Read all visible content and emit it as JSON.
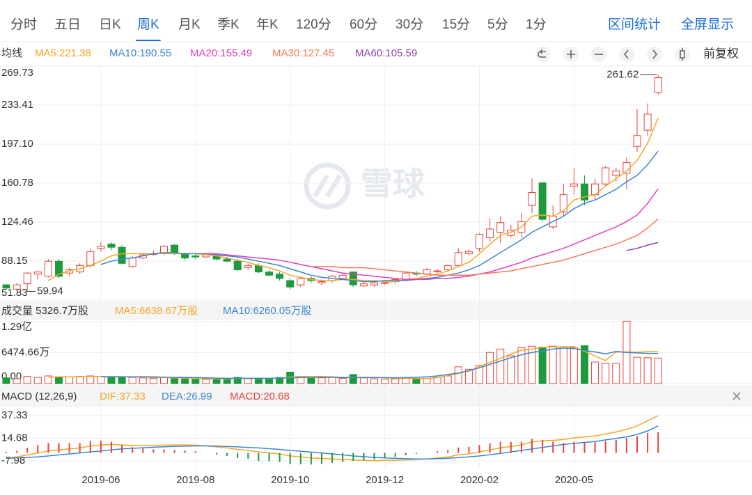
{
  "toolbar": {
    "tabs": [
      {
        "label": "分时"
      },
      {
        "label": "五日"
      },
      {
        "label": "日K"
      },
      {
        "label": "周K",
        "active": true
      },
      {
        "label": "月K"
      },
      {
        "label": "季K"
      },
      {
        "label": "年K"
      },
      {
        "label": "120分"
      },
      {
        "label": "60分"
      },
      {
        "label": "30分"
      },
      {
        "label": "15分"
      },
      {
        "label": "5分"
      },
      {
        "label": "1分"
      }
    ],
    "actions": [
      "区间统计",
      "全屏显示"
    ],
    "price_adjust": "前复权"
  },
  "watermark": "雪球",
  "chart_data": [
    {
      "type": "candlestick",
      "legend_title": "均线",
      "up_color": "#e8413b",
      "down_color": "#1c9a3c",
      "up_hollow": true,
      "grid": true,
      "ylim": [
        51.83,
        269.73
      ],
      "yticks": [
        51.83,
        88.15,
        124.46,
        160.78,
        {
          "value": 197.1,
          "label": "197.10"
        },
        233.41,
        269.73
      ],
      "categories": [
        null,
        null,
        null,
        null,
        null,
        null,
        null,
        null,
        null,
        "2019-06",
        null,
        null,
        null,
        null,
        null,
        null,
        null,
        null,
        "2019-08",
        null,
        null,
        null,
        null,
        null,
        null,
        null,
        null,
        "2019-10",
        null,
        null,
        null,
        null,
        null,
        null,
        null,
        null,
        "2019-12",
        null,
        null,
        null,
        null,
        null,
        null,
        null,
        null,
        "2020-02",
        null,
        null,
        null,
        null,
        null,
        null,
        null,
        null,
        "2020-05",
        null,
        null,
        null,
        null,
        null,
        null,
        null,
        null
      ],
      "open": [
        66,
        62,
        67,
        76,
        74,
        88,
        77,
        78,
        84,
        100,
        104,
        101,
        83,
        91,
        95,
        95,
        103,
        95,
        93,
        92,
        93,
        90,
        88,
        82,
        84,
        78,
        76,
        70,
        66,
        72,
        68,
        70,
        72,
        78,
        65,
        66,
        68,
        69,
        71,
        77,
        76,
        79,
        80,
        84,
        95,
        100,
        110,
        115,
        112,
        115,
        140,
        161,
        120,
        134,
        158,
        160,
        150,
        160,
        168,
        170,
        195,
        210,
        245
      ],
      "close": [
        63,
        66,
        77,
        78,
        88,
        74,
        80,
        84,
        97,
        102,
        101,
        86,
        91,
        94,
        95,
        102,
        96,
        91,
        92,
        94,
        90,
        88,
        80,
        84,
        78,
        75,
        72,
        64,
        72,
        70,
        69,
        74,
        75,
        66,
        67,
        68,
        68,
        71,
        77,
        76,
        80,
        79,
        84,
        96,
        97,
        113,
        118,
        124,
        117,
        125,
        152,
        127,
        130,
        150,
        160,
        145,
        160,
        175,
        172,
        180,
        205,
        225,
        259
      ],
      "low": [
        61,
        61,
        59.94,
        71,
        73,
        72,
        74,
        76,
        82,
        97,
        98,
        85,
        82,
        90,
        93,
        94,
        94,
        89,
        90,
        91,
        89,
        87,
        79,
        80,
        77,
        74,
        70,
        62,
        64,
        68,
        66,
        68,
        71,
        64,
        64,
        64,
        66,
        67,
        70,
        74,
        75,
        77,
        78,
        84,
        93,
        97,
        106,
        105,
        110,
        110,
        133,
        125,
        118,
        130,
        150,
        140,
        145,
        158,
        162,
        155,
        190,
        205,
        243
      ],
      "high": [
        67,
        68,
        78,
        79,
        90,
        90,
        82,
        86,
        100,
        106,
        106,
        103,
        93,
        95,
        98,
        103,
        104,
        96,
        95,
        96,
        95,
        92,
        90,
        86,
        86,
        80,
        78,
        72,
        73,
        74,
        71,
        75,
        76,
        78,
        69,
        70,
        70,
        72,
        78,
        79,
        82,
        81,
        85,
        100,
        99,
        114,
        128,
        130,
        122,
        133,
        165,
        162,
        140,
        160,
        175,
        168,
        165,
        177,
        175,
        185,
        230,
        235,
        261.62
      ],
      "annotations": [
        261.62,
        59.94
      ],
      "series": [
        {
          "label": "MA5:221.38",
          "color": "#f5a623",
          "values": [
            null,
            null,
            null,
            null,
            70,
            76,
            79,
            81,
            84,
            88,
            93,
            95,
            95,
            95,
            95,
            95,
            95,
            95,
            95,
            94,
            93,
            91,
            89,
            87,
            84,
            82,
            79,
            75,
            73,
            71,
            70,
            70,
            71,
            71,
            70,
            70,
            69,
            69,
            71,
            72,
            74,
            76,
            79,
            83,
            87,
            95,
            104,
            112,
            115,
            120,
            130,
            131,
            130,
            135,
            145,
            148,
            150,
            158,
            165,
            172,
            182,
            198,
            221.38
          ]
        },
        {
          "label": "MA10:190.55",
          "color": "#3a86d4",
          "values": [
            null,
            null,
            null,
            null,
            null,
            null,
            null,
            null,
            null,
            85,
            88,
            90,
            91,
            93,
            95,
            96,
            96,
            95,
            95,
            95,
            94,
            93,
            92,
            90,
            88,
            86,
            84,
            81,
            78,
            75,
            73,
            72,
            71,
            70,
            69,
            69,
            70,
            70,
            70,
            71,
            72,
            73,
            75,
            77,
            80,
            84,
            90,
            96,
            102,
            108,
            115,
            120,
            125,
            130,
            137,
            142,
            145,
            150,
            155,
            162,
            168,
            178,
            190.55
          ]
        },
        {
          "label": "MA20:155.49",
          "color": "#e33fbf",
          "values": [
            null,
            null,
            null,
            null,
            null,
            null,
            null,
            null,
            null,
            null,
            null,
            null,
            null,
            null,
            null,
            null,
            null,
            null,
            null,
            95,
            95,
            94,
            93,
            92,
            91,
            90,
            89,
            87,
            85,
            83,
            81,
            79,
            77,
            76,
            75,
            74,
            73,
            72,
            71,
            71,
            71,
            72,
            72,
            73,
            74,
            76,
            78,
            81,
            84,
            87,
            91,
            94,
            97,
            100,
            104,
            108,
            112,
            116,
            120,
            125,
            131,
            142,
            155.49
          ]
        },
        {
          "label": "MA30:127.45",
          "color": "#f87a58",
          "values": [
            null,
            null,
            null,
            null,
            null,
            null,
            null,
            null,
            null,
            null,
            null,
            null,
            null,
            null,
            null,
            null,
            null,
            null,
            null,
            null,
            null,
            null,
            null,
            null,
            null,
            null,
            null,
            null,
            null,
            83,
            83,
            83,
            82,
            82,
            82,
            81,
            80,
            79,
            78,
            77,
            76,
            75,
            75,
            75,
            75,
            76,
            77,
            78,
            79,
            81,
            83,
            85,
            87,
            89,
            92,
            95,
            98,
            101,
            104,
            108,
            112,
            119,
            127.45
          ]
        },
        {
          "label": "MA60:105.59",
          "color": "#8b45b0",
          "values": [
            null,
            null,
            null,
            null,
            null,
            null,
            null,
            null,
            null,
            null,
            null,
            null,
            null,
            null,
            null,
            null,
            null,
            null,
            null,
            null,
            null,
            null,
            null,
            null,
            null,
            null,
            null,
            null,
            null,
            null,
            null,
            null,
            null,
            null,
            null,
            null,
            null,
            null,
            null,
            null,
            null,
            null,
            null,
            null,
            null,
            null,
            null,
            null,
            null,
            null,
            null,
            null,
            null,
            null,
            null,
            null,
            null,
            null,
            null,
            98,
            100,
            103,
            105.59
          ]
        }
      ]
    },
    {
      "type": "bar",
      "ylim": [
        0,
        13200
      ],
      "yticks": [
        {
          "value": 0,
          "label": "0.00"
        },
        {
          "value": 6474.66,
          "label": "6474.66万"
        },
        {
          "value": 12949.32,
          "label": "1.29亿"
        }
      ],
      "series": [
        {
          "label": "成交量 5326.7万股",
          "type": "bar",
          "values": [
            1200,
            1000,
            1500,
            1300,
            1600,
            1300,
            1400,
            1500,
            1600,
            1500,
            1300,
            1400,
            1300,
            1200,
            1100,
            1300,
            1100,
            1000,
            900,
            900,
            1000,
            1100,
            1300,
            1000,
            1100,
            1000,
            1300,
            2400,
            1500,
            1100,
            1200,
            1300,
            1100,
            1900,
            1200,
            1000,
            900,
            1000,
            1200,
            1000,
            1100,
            1300,
            1600,
            3500,
            3000,
            3800,
            6500,
            7200,
            5800,
            7500,
            7800,
            7600,
            7800,
            7700,
            7500,
            7900,
            4500,
            4200,
            4200,
            13000,
            5500,
            5400,
            5326.7
          ]
        },
        {
          "label": "MA5:6638.67万股",
          "type": "line",
          "color": "#f5a623",
          "values": [
            null,
            null,
            null,
            null,
            1300,
            1400,
            1400,
            1400,
            1500,
            1500,
            1450,
            1450,
            1400,
            1350,
            1250,
            1250,
            1200,
            1150,
            1100,
            1050,
            1000,
            1000,
            1050,
            1050,
            1100,
            1100,
            1160,
            1360,
            1460,
            1460,
            1500,
            1400,
            1300,
            1300,
            1320,
            1300,
            1200,
            1100,
            1050,
            1050,
            1050,
            1230,
            1700,
            2100,
            2580,
            3560,
            4400,
            5260,
            6160,
            6960,
            7180,
            7540,
            7680,
            7680,
            7700,
            6700,
            5740,
            4800,
            6600,
            6600,
            6540,
            6660,
            6638.67
          ]
        },
        {
          "label": "MA10:6260.05万股",
          "type": "line",
          "color": "#3a86d4",
          "values": [
            null,
            null,
            null,
            null,
            null,
            null,
            null,
            null,
            null,
            1400,
            1400,
            1400,
            1400,
            1400,
            1400,
            1350,
            1300,
            1300,
            1250,
            1200,
            1150,
            1100,
            1100,
            1100,
            1100,
            1100,
            1150,
            1200,
            1250,
            1300,
            1300,
            1300,
            1250,
            1250,
            1250,
            1250,
            1250,
            1200,
            1250,
            1300,
            1400,
            1600,
            1900,
            2200,
            2700,
            3300,
            4000,
            4700,
            5400,
            6000,
            6500,
            6800,
            7200,
            7400,
            7300,
            6900,
            6600,
            6200,
            6700,
            6500,
            6400,
            6300,
            6260.05
          ]
        }
      ]
    },
    {
      "type": "macd",
      "title": "MACD (12,26,9)",
      "up_color": "#e8413b",
      "down_color": "#1c9a3c",
      "ylim": [
        -14.95,
        45.69
      ],
      "yticks": [
        -7.98,
        14.68,
        37.33
      ],
      "series": [
        {
          "label": "DIF:37.33",
          "type": "line",
          "color": "#f5a623",
          "values": [
            -5,
            -4,
            -2,
            0,
            2,
            3,
            4,
            5,
            7,
            8,
            8.5,
            8,
            7.5,
            7.5,
            7.5,
            7.8,
            8,
            8,
            7.8,
            7,
            6,
            5,
            3.5,
            2.5,
            1,
            0,
            -1,
            -3,
            -4,
            -5,
            -5.5,
            -6,
            -6.5,
            -7,
            -7.5,
            -7.8,
            -7.5,
            -7.5,
            -7,
            -6.5,
            -6,
            -5,
            -4,
            -2,
            -1,
            1,
            3,
            5,
            6.5,
            8,
            11,
            12,
            12.5,
            13.5,
            15,
            16,
            17,
            19,
            21,
            23.5,
            27,
            32,
            37.33
          ]
        },
        {
          "label": "DEA:26.99",
          "type": "line",
          "color": "#3a86d4",
          "values": [
            -5.5,
            -5,
            -4.5,
            -4,
            -3,
            -2,
            -1,
            0,
            1,
            2,
            3,
            4,
            4.6,
            5.2,
            5.7,
            6.1,
            6.5,
            6.8,
            7,
            7,
            6.8,
            6.5,
            6,
            5.5,
            5,
            4.2,
            3.5,
            2.5,
            1.7,
            0.8,
            0,
            -1,
            -2,
            -3,
            -3.8,
            -4.5,
            -5,
            -5.5,
            -5.8,
            -6,
            -6,
            -5.8,
            -5.4,
            -4.7,
            -4,
            -3,
            -1.8,
            -0.5,
            1,
            2.5,
            4,
            5.5,
            7,
            8.5,
            9.5,
            10.5,
            11.5,
            13,
            14.5,
            16,
            18.5,
            22,
            26.99
          ]
        },
        {
          "label": "MACD:20.68",
          "type": "bar",
          "color": "#e8413b",
          "values": [
            1,
            2,
            5,
            8,
            10,
            10,
            10,
            10,
            12,
            12,
            11,
            8,
            5.8,
            4.6,
            3.6,
            3.4,
            3,
            2.4,
            1.6,
            0,
            -1.6,
            -3,
            -5,
            -6,
            -8,
            -8.4,
            -9,
            -11,
            -11.4,
            -11.6,
            -11,
            -10,
            -9,
            -8,
            -7.4,
            -6.6,
            -5,
            -4,
            -2.4,
            -1,
            0,
            1.6,
            2.8,
            5.4,
            6,
            8,
            9.6,
            11,
            11,
            11,
            14,
            13,
            11,
            10,
            11,
            11,
            11,
            12,
            13,
            15,
            17,
            20,
            20.68
          ]
        }
      ]
    }
  ]
}
